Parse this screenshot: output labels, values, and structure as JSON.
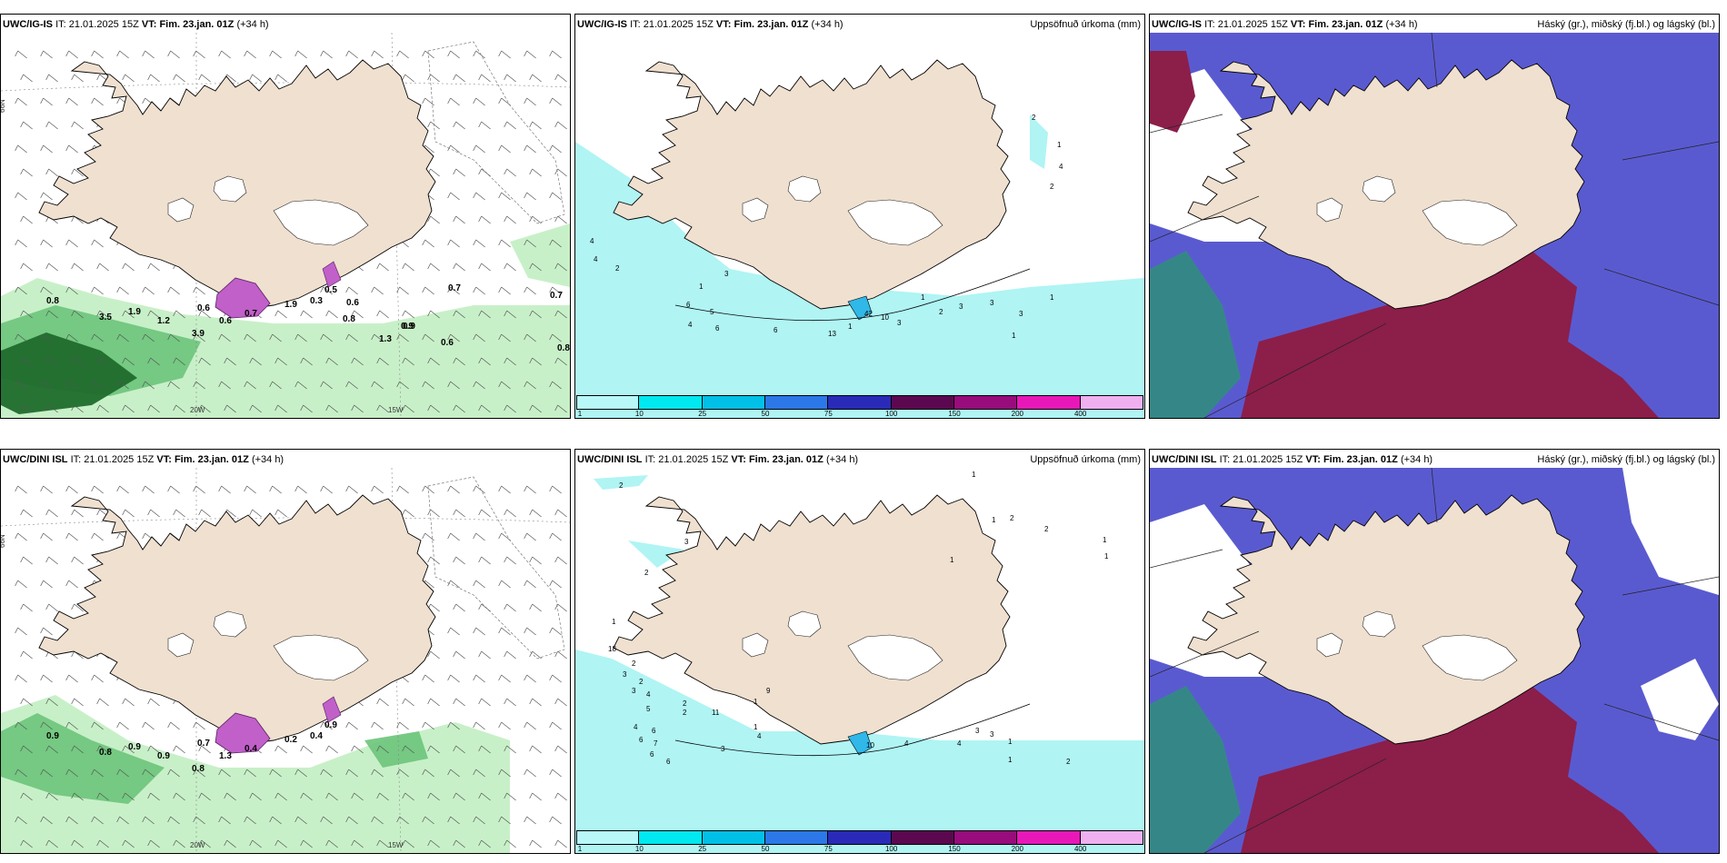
{
  "panels": [
    {
      "id": "ig-wind",
      "model": "UWC/IG-IS",
      "it_label": "IT:",
      "it_value": "21.01.2025 15Z",
      "vt_label": "VT:",
      "vt_value": "Fim. 23.jan. 01Z",
      "lead": "(+34 h)",
      "right_title": "",
      "lat_label": "66N",
      "lon_labels": [
        "20W",
        "15W"
      ],
      "values": [
        "0.8",
        "3.5",
        "1.9",
        "1.2",
        "3.9",
        "0.6",
        "0.6",
        "0.7",
        "1.9",
        "0.3",
        "0.5",
        "0.6",
        "0.7",
        "0.7",
        "0.8",
        "0.9",
        "1.3",
        "0.9",
        "0.6",
        "0.8"
      ]
    },
    {
      "id": "ig-precip",
      "model": "UWC/IG-IS",
      "it_label": "IT:",
      "it_value": "21.01.2025 15Z",
      "vt_label": "VT:",
      "vt_value": "Fim. 23.jan. 01Z",
      "lead": "(+34 h)",
      "right_title": "Uppsöfnuð úrkoma (mm)",
      "values": [
        "2",
        "1",
        "4",
        "2",
        "4",
        "4",
        "2",
        "3",
        "1",
        "6",
        "5",
        "4",
        "6",
        "6",
        "13",
        "10",
        "3",
        "2",
        "3",
        "3",
        "3",
        "1",
        "1",
        "1",
        "1",
        "42"
      ]
    },
    {
      "id": "ig-cloud",
      "model": "UWC/IG-IS",
      "it_label": "IT:",
      "it_value": "21.01.2025 15Z",
      "vt_label": "VT:",
      "vt_value": "Fim. 23.jan. 01Z",
      "lead": "(+34 h)",
      "right_title": "Háský (gr.), miðský (fj.bl.) og lágský (bl.)",
      "values": []
    },
    {
      "id": "dini-wind",
      "model": "UWC/DINI ISL",
      "it_label": "IT:",
      "it_value": "21.01.2025 15Z",
      "vt_label": "VT:",
      "vt_value": "Fim. 23.jan. 01Z",
      "lead": "(+34 h)",
      "right_title": "",
      "lat_label": "66N",
      "lon_labels": [
        "20W",
        "15W"
      ],
      "values": [
        "0.9",
        "0.8",
        "0.9",
        "0.9",
        "0.8",
        "0.7",
        "1.3",
        "0.4",
        "0.2",
        "0.4",
        "0.9"
      ]
    },
    {
      "id": "dini-precip",
      "model": "UWC/DINI ISL",
      "it_label": "IT:",
      "it_value": "21.01.2025 15Z",
      "vt_label": "VT:",
      "vt_value": "Fim. 23.jan. 01Z",
      "lead": "(+34 h)",
      "right_title": "Uppsöfnuð úrkoma (mm)",
      "values": [
        "2",
        "1",
        "1",
        "2",
        "1",
        "1",
        "1",
        "2",
        "3",
        "2",
        "1",
        "18",
        "2",
        "3",
        "2",
        "3",
        "4",
        "5",
        "4",
        "6",
        "6",
        "7",
        "6",
        "6",
        "11",
        "2",
        "2",
        "3",
        "4",
        "1",
        "1",
        "9",
        "10",
        "4",
        "4",
        "1",
        "1",
        "3",
        "3",
        "2"
      ]
    },
    {
      "id": "dini-cloud",
      "model": "UWC/DINI ISL",
      "it_label": "IT:",
      "it_value": "21.01.2025 15Z",
      "vt_label": "VT:",
      "vt_value": "Fim. 23.jan. 01Z",
      "lead": "(+34 h)",
      "right_title": "Háský (gr.), miðský (fj.bl.) og lágský (bl.)",
      "values": []
    }
  ],
  "colorbar": {
    "ticks": [
      "1",
      "10",
      "25",
      "50",
      "75",
      "100",
      "150",
      "200",
      "400"
    ],
    "colors": [
      "#b8f8f8",
      "#00e8f0",
      "#00c0e8",
      "#2c78e8",
      "#2a2ab8",
      "#5c0850",
      "#980c7c",
      "#e818b8",
      "#f0b0f0"
    ]
  },
  "colors": {
    "land": "#f0e0d0",
    "sea_precip": "#b0f4f4",
    "cloud_low": "#5a5ad0",
    "cloud_mid": "#8c1e4a",
    "cloud_high": "#2f8f7a",
    "wind_green_light": "#c8f0c8",
    "wind_green_dark": "#1f6b2c",
    "wind_purple": "#c060c8"
  }
}
